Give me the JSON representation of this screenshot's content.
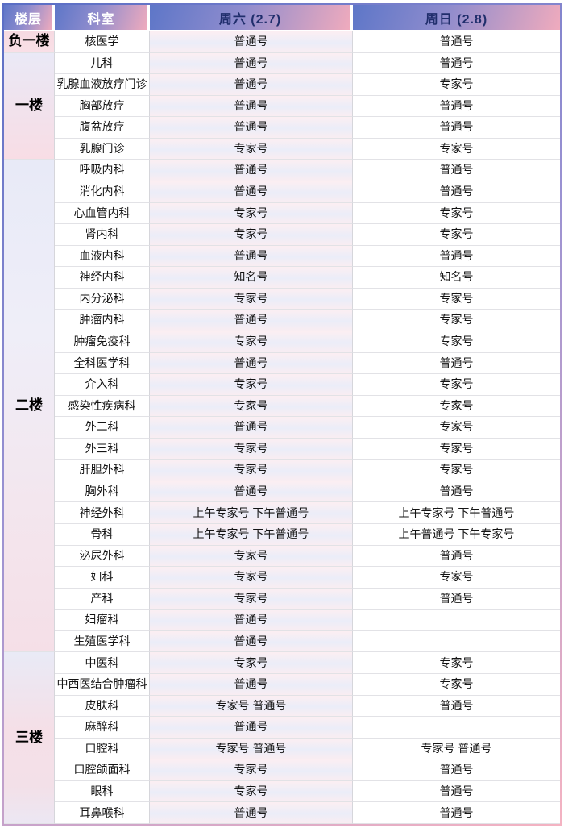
{
  "theme": {
    "frame-start": "#5a6ec5",
    "frame-end": "#f4b3c2",
    "header-grad-start": "#5d76c8",
    "header-grad-mid": "#8f8ccd",
    "header-grad-end": "#f0abbd",
    "header-text-light": "#ffffff",
    "header-text-dark": "#202e6c",
    "body-text": "#141414",
    "grid-line": "#e2e2e6",
    "col-line": "#d6d6db",
    "sat-top": "#fceef2",
    "sat-mid": "#ebedf8",
    "sat-bot": "#f9edf2"
  },
  "table": {
    "headers": [
      {
        "label": "楼层"
      },
      {
        "label": "科室"
      },
      {
        "label": "周六 (2.7)"
      },
      {
        "label": "周日 (2.8)"
      }
    ],
    "groups": [
      {
        "floor": "负一楼",
        "rows": [
          [
            "核医学",
            "普通号",
            "普通号"
          ]
        ]
      },
      {
        "floor": "一楼",
        "rows": [
          [
            "儿科",
            "普通号",
            "普通号"
          ],
          [
            "乳腺血液放疗门诊",
            "普通号",
            "专家号"
          ],
          [
            "胸部放疗",
            "普通号",
            "普通号"
          ],
          [
            "腹盆放疗",
            "普通号",
            "普通号"
          ],
          [
            "乳腺门诊",
            "专家号",
            "专家号"
          ]
        ]
      },
      {
        "floor": "二楼",
        "rows": [
          [
            "呼吸内科",
            "普通号",
            "普通号"
          ],
          [
            "消化内科",
            "普通号",
            "普通号"
          ],
          [
            "心血管内科",
            "专家号",
            "专家号"
          ],
          [
            "肾内科",
            "专家号",
            "专家号"
          ],
          [
            "血液内科",
            "普通号",
            "普通号"
          ],
          [
            "神经内科",
            "知名号",
            "知名号"
          ],
          [
            "内分泌科",
            "专家号",
            "专家号"
          ],
          [
            "肿瘤内科",
            "普通号",
            "专家号"
          ],
          [
            "肿瘤免疫科",
            "专家号",
            "专家号"
          ],
          [
            "全科医学科",
            "普通号",
            "普通号"
          ],
          [
            "介入科",
            "专家号",
            "专家号"
          ],
          [
            "感染性疾病科",
            "专家号",
            "专家号"
          ],
          [
            "外二科",
            "普通号",
            "专家号"
          ],
          [
            "外三科",
            "专家号",
            "专家号"
          ],
          [
            "肝胆外科",
            "专家号",
            "专家号"
          ],
          [
            "胸外科",
            "普通号",
            "普通号"
          ],
          [
            "神经外科",
            "上午专家号 下午普通号",
            "上午专家号 下午普通号"
          ],
          [
            "骨科",
            "上午专家号 下午普通号",
            "上午普通号 下午专家号"
          ],
          [
            "泌尿外科",
            "专家号",
            "普通号"
          ],
          [
            "妇科",
            "专家号",
            "专家号"
          ],
          [
            "产科",
            "专家号",
            "普通号"
          ],
          [
            "妇瘤科",
            "普通号",
            ""
          ],
          [
            "生殖医学科",
            "普通号",
            ""
          ]
        ]
      },
      {
        "floor": "三楼",
        "rows": [
          [
            "中医科",
            "专家号",
            "专家号"
          ],
          [
            "中西医结合肿瘤科",
            "普通号",
            "专家号"
          ],
          [
            "皮肤科",
            "专家号 普通号",
            "普通号"
          ],
          [
            "麻醉科",
            "普通号",
            ""
          ],
          [
            "口腔科",
            "专家号 普通号",
            "专家号 普通号"
          ],
          [
            "口腔颌面科",
            "专家号",
            "普通号"
          ],
          [
            "眼科",
            "专家号",
            "普通号"
          ],
          [
            "耳鼻喉科",
            "普通号",
            "普通号"
          ]
        ]
      }
    ]
  }
}
